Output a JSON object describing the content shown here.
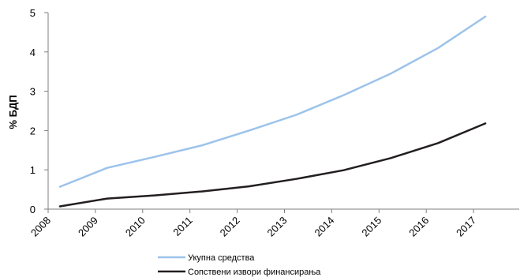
{
  "chart_data": {
    "type": "line",
    "title": "",
    "xlabel": "",
    "ylabel": "% БДП",
    "x_categories": [
      "2008",
      "2009",
      "2010",
      "2011",
      "2012",
      "2013",
      "2014",
      "2015",
      "2016",
      "2017"
    ],
    "yticks": [
      "0",
      "1",
      "2",
      "3",
      "4",
      "5"
    ],
    "ylim": [
      0,
      5
    ],
    "grid": false,
    "legend_position": "bottom",
    "series": [
      {
        "name": "Укупна средства",
        "color": "#9cc3ea",
        "x": [
          2008.25,
          2009.25,
          2010.25,
          2011.25,
          2012.25,
          2013.25,
          2014.25,
          2015.25,
          2016.25,
          2017.25
        ],
        "values": [
          0.57,
          1.05,
          1.33,
          1.62,
          2.0,
          2.4,
          2.9,
          3.45,
          4.1,
          4.9
        ]
      },
      {
        "name": "Сопствени извори финансирања",
        "color": "#231f20",
        "x": [
          2008.25,
          2009.25,
          2010.25,
          2011.25,
          2012.25,
          2013.25,
          2014.25,
          2015.25,
          2016.25,
          2017.25
        ],
        "values": [
          0.07,
          0.27,
          0.35,
          0.45,
          0.58,
          0.77,
          0.99,
          1.3,
          1.68,
          2.18
        ]
      }
    ]
  }
}
